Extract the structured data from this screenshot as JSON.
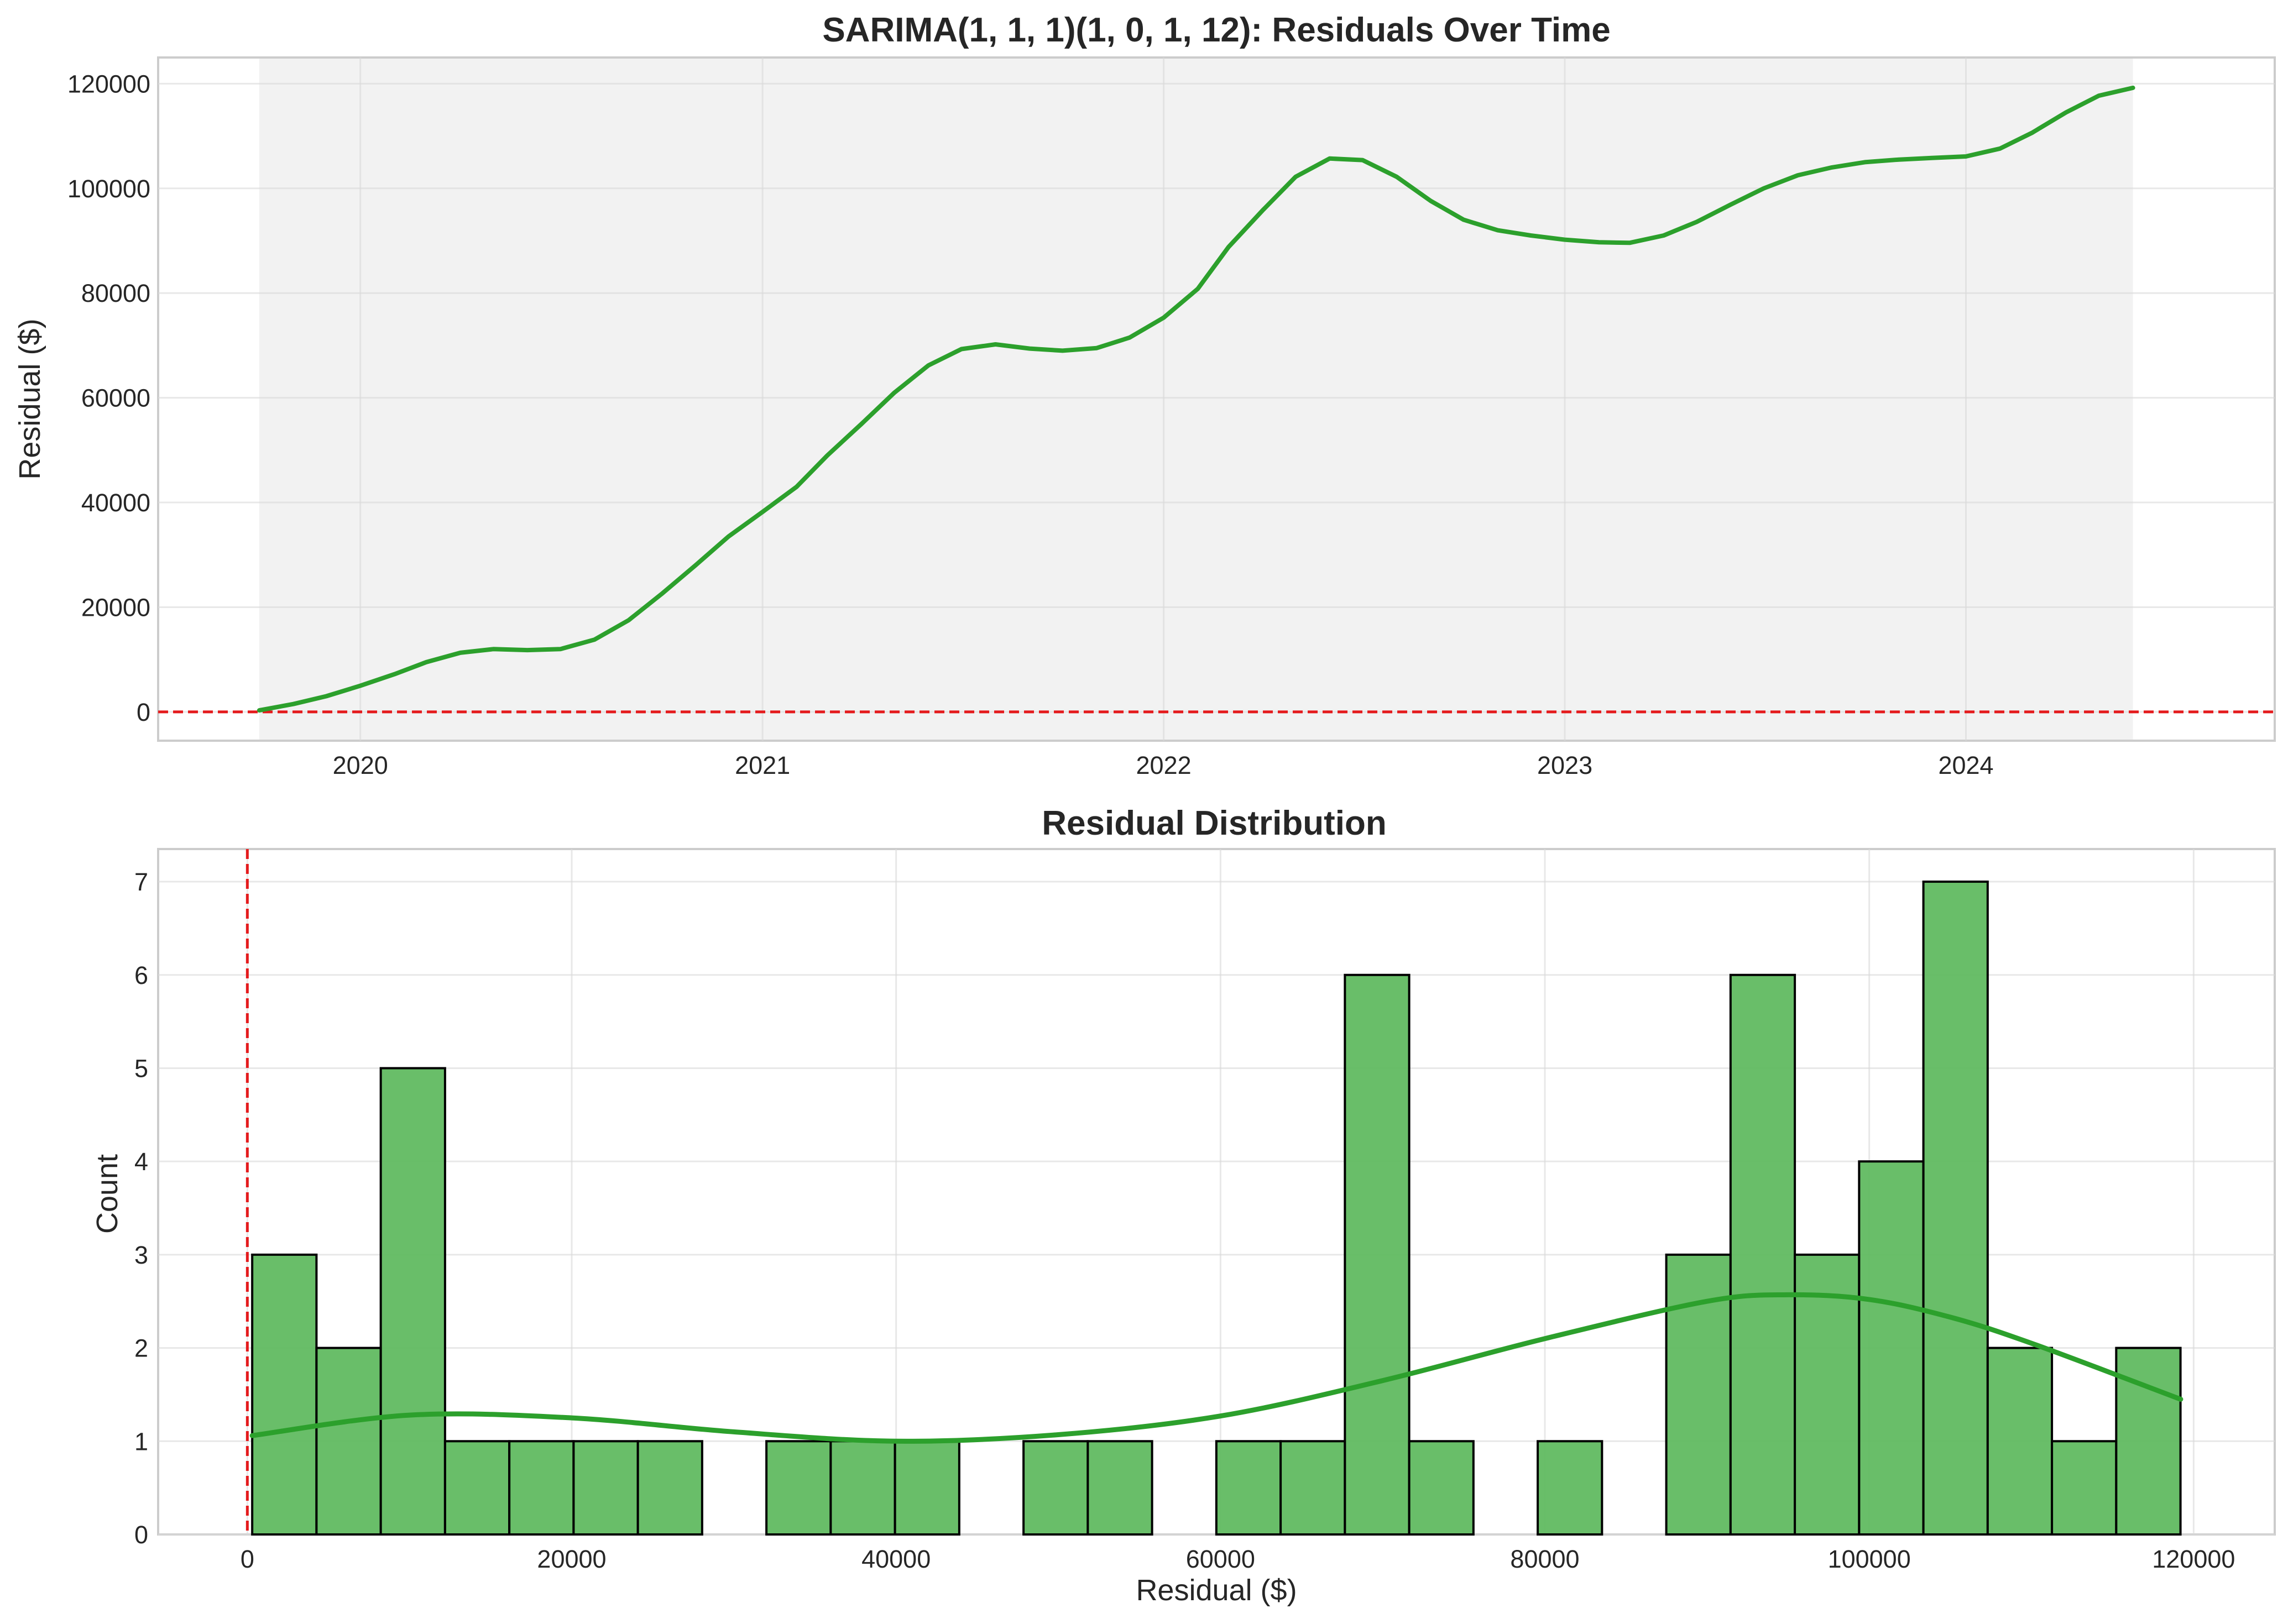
{
  "chart_data": [
    {
      "type": "line",
      "title": "SARIMA(1, 1, 1)(1, 0, 1, 12): Residuals Over Time",
      "xlabel": "",
      "ylabel": "Residual ($)",
      "x_tick_labels": [
        "2020",
        "2021",
        "2022",
        "2023",
        "2024"
      ],
      "y_tick_labels": [
        "0",
        "20000",
        "40000",
        "60000",
        "80000",
        "100000",
        "120000"
      ],
      "ylim": [
        -5500,
        125000
      ],
      "xlim": [
        "2019-07-01",
        "2024-10-08"
      ],
      "grid": true,
      "shaded_region": [
        "2019-10-01",
        "2024-06-01"
      ],
      "reference_line": {
        "axis": "y",
        "value": 0,
        "style": "dashed",
        "color": "#e41a1c"
      },
      "series_color": "#2ca02c",
      "series": [
        {
          "x": [
            "2019-10",
            "2019-11",
            "2019-12",
            "2020-01",
            "2020-02",
            "2020-03",
            "2020-04",
            "2020-05",
            "2020-06",
            "2020-07",
            "2020-08",
            "2020-09",
            "2020-10",
            "2020-11",
            "2020-12",
            "2021-01",
            "2021-02",
            "2021-03",
            "2021-04",
            "2021-05",
            "2021-06",
            "2021-07",
            "2021-08",
            "2021-09",
            "2021-10",
            "2021-11",
            "2021-12",
            "2022-01",
            "2022-02",
            "2022-03",
            "2022-04",
            "2022-05",
            "2022-06",
            "2022-07",
            "2022-08",
            "2022-09",
            "2022-10",
            "2022-11",
            "2022-12",
            "2023-01",
            "2023-02",
            "2023-03",
            "2023-04",
            "2023-05",
            "2023-06",
            "2023-07",
            "2023-08",
            "2023-09",
            "2023-10",
            "2023-11",
            "2023-12",
            "2024-01",
            "2024-02",
            "2024-03",
            "2024-04",
            "2024-05",
            "2024-06"
          ],
          "values": [
            300,
            1500,
            3000,
            5000,
            7200,
            9500,
            11300,
            12000,
            11800,
            12000,
            13800,
            17500,
            22500,
            28000,
            33500,
            38200,
            43000,
            49000,
            55000,
            61000,
            66200,
            69300,
            70200,
            69400,
            69000,
            69500,
            71500,
            75300,
            80800,
            88800,
            95800,
            102200,
            105700,
            105400,
            102200,
            97600,
            94000,
            92000,
            91000,
            90200,
            89700,
            89600,
            91000,
            93600,
            96900,
            100000,
            102500,
            104000,
            105000,
            105500,
            105800,
            106100,
            107600,
            110600,
            114500,
            117700,
            119200
          ]
        }
      ]
    },
    {
      "type": "bar",
      "title": "Residual Distribution",
      "xlabel": "Residual ($)",
      "ylabel": "Count",
      "x_tick_labels": [
        "0",
        "20000",
        "40000",
        "60000",
        "80000",
        "100000",
        "120000"
      ],
      "y_tick_labels": [
        "0",
        "1",
        "2",
        "3",
        "4",
        "5",
        "6",
        "7"
      ],
      "xlim": [
        -5500,
        125000
      ],
      "ylim": [
        0,
        7.35
      ],
      "grid": true,
      "bin_start": 300,
      "bin_width": 3963,
      "bar_color": "#5cb85c",
      "counts": [
        3,
        2,
        5,
        1,
        1,
        1,
        1,
        0,
        1,
        1,
        1,
        0,
        1,
        1,
        0,
        1,
        1,
        6,
        1,
        0,
        1,
        0,
        3,
        6,
        3,
        4,
        7,
        2,
        1,
        2
      ],
      "kde": {
        "x": [
          300,
          10000,
          20000,
          30000,
          40000,
          50000,
          60000,
          70000,
          80000,
          90000,
          95000,
          100000,
          105000,
          110000,
          119200
        ],
        "y": [
          1.06,
          1.28,
          1.25,
          1.1,
          1.0,
          1.07,
          1.27,
          1.65,
          2.1,
          2.5,
          2.57,
          2.52,
          2.33,
          2.05,
          1.45
        ]
      },
      "reference_line": {
        "axis": "x",
        "value": 0,
        "style": "dashed",
        "color": "#e41a1c"
      }
    }
  ]
}
